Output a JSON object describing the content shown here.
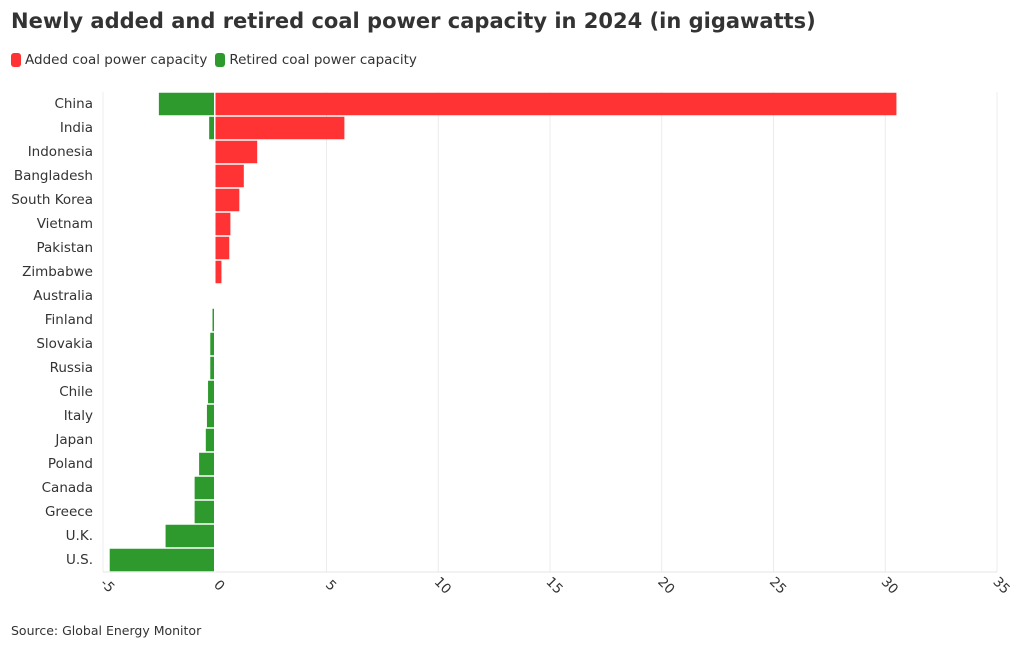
{
  "title": "Newly added and retired coal power capacity in 2024 (in gigawatts)",
  "source": "Source: Global Energy Monitor",
  "legend": [
    {
      "label": "Added coal power capacity",
      "color": "#ff3333"
    },
    {
      "label": "Retired coal power capacity",
      "color": "#2e9a2e"
    }
  ],
  "chart_data": {
    "type": "bar",
    "orientation": "horizontal",
    "stacked": true,
    "categories": [
      "China",
      "India",
      "Indonesia",
      "Bangladesh",
      "South Korea",
      "Vietnam",
      "Pakistan",
      "Zimbabwe",
      "Australia",
      "Finland",
      "Slovakia",
      "Russia",
      "Chile",
      "Italy",
      "Japan",
      "Poland",
      "Canada",
      "Greece",
      "U.K.",
      "U.S."
    ],
    "series": [
      {
        "name": "Added coal power capacity",
        "color": "#ff3333",
        "values": [
          30.5,
          5.8,
          1.9,
          1.3,
          1.1,
          0.7,
          0.65,
          0.3,
          0,
          0,
          0,
          0,
          0,
          0,
          0,
          0,
          0,
          0,
          0,
          0
        ]
      },
      {
        "name": "Retired coal power capacity",
        "color": "#2e9a2e",
        "values": [
          -2.5,
          -0.25,
          0,
          0,
          0,
          0,
          0,
          0,
          -0.02,
          -0.1,
          -0.2,
          -0.2,
          -0.3,
          -0.35,
          -0.4,
          -0.7,
          -0.9,
          -0.9,
          -2.2,
          -4.7
        ]
      }
    ],
    "xlim": [
      -5,
      35
    ],
    "xticks": [
      -5,
      0,
      5,
      10,
      15,
      20,
      25,
      30,
      35
    ],
    "grid": true,
    "legend_position": "top-left"
  }
}
